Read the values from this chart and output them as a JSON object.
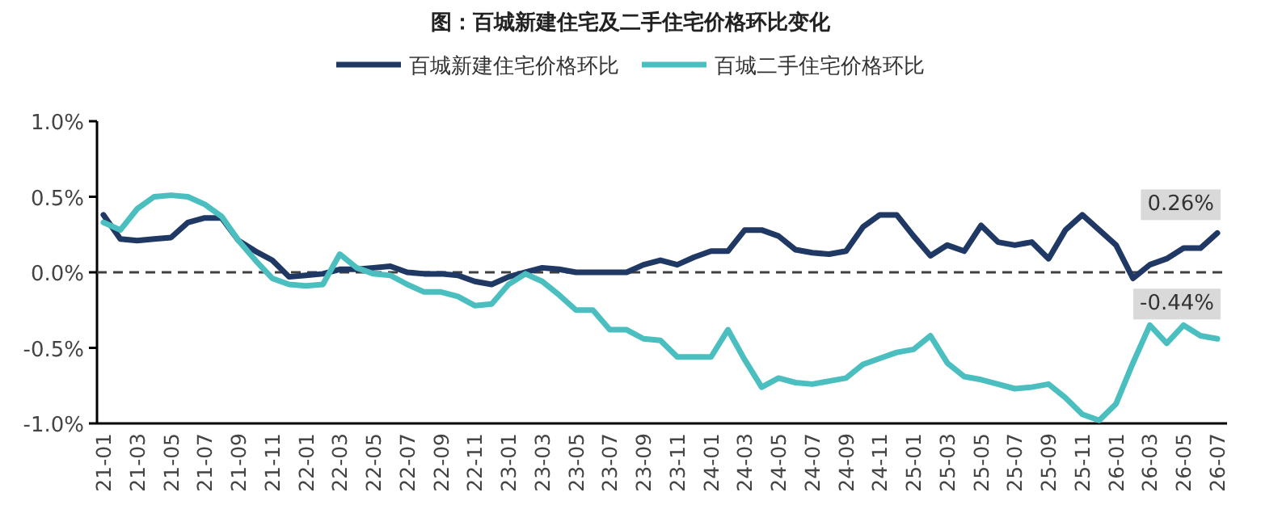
{
  "chart_data": {
    "type": "line",
    "title": "图：百城新建住宅及二手住宅价格环比变化",
    "categories": [
      "21-01",
      null,
      "21-03",
      null,
      "21-05",
      null,
      "21-07",
      null,
      "21-09",
      null,
      "21-11",
      null,
      "22-01",
      null,
      "22-03",
      null,
      "22-05",
      null,
      "22-07",
      null,
      "22-09",
      null,
      "22-11",
      null,
      "23-01",
      null,
      "23-03",
      null,
      "23-05",
      null,
      "23-07",
      null,
      "23-09",
      null,
      "23-11",
      null,
      "24-01",
      null,
      "24-03",
      null,
      "24-05",
      null,
      "24-07",
      null,
      "24-09",
      null,
      "24-11",
      null,
      "25-01",
      null,
      "25-03",
      null,
      "25-05",
      null,
      "25-07",
      null,
      "25-09",
      null,
      "25-11",
      null,
      "26-01",
      null,
      "26-03",
      null,
      "26-05",
      null,
      "26-07"
    ],
    "series": [
      {
        "name": "百城新建住宅价格环比",
        "color": "#1f3864",
        "values": [
          0.38,
          0.22,
          0.21,
          0.22,
          0.23,
          0.33,
          0.36,
          0.36,
          0.21,
          0.14,
          0.08,
          -0.03,
          -0.02,
          -0.01,
          0.02,
          0.02,
          0.03,
          0.04,
          0.0,
          -0.01,
          -0.01,
          -0.02,
          -0.06,
          -0.08,
          -0.03,
          0.0,
          0.03,
          0.02,
          0.0,
          0.0,
          0.0,
          0.0,
          0.05,
          0.08,
          0.05,
          0.1,
          0.14,
          0.14,
          0.28,
          0.28,
          0.24,
          0.15,
          0.13,
          0.12,
          0.14,
          0.3,
          0.38,
          0.38,
          0.24,
          0.11,
          0.18,
          0.14,
          0.31,
          0.2,
          0.18,
          0.2,
          0.09,
          0.28,
          0.38,
          0.28,
          0.18,
          -0.04,
          0.05,
          0.09,
          0.16,
          0.16,
          0.26
        ],
        "value_labels": [
          null,
          null,
          null,
          null,
          null,
          null,
          null,
          null,
          null,
          null,
          null,
          null,
          null,
          null,
          null,
          null,
          null,
          null,
          null,
          null,
          null,
          null,
          null,
          null,
          null,
          null,
          null,
          null,
          null,
          null,
          null,
          null,
          null,
          null,
          null,
          null,
          null,
          null,
          null,
          null,
          null,
          null,
          null,
          null,
          null,
          null,
          null,
          null,
          null,
          null,
          null,
          null,
          null,
          null,
          null,
          null,
          null,
          null,
          null,
          null,
          null,
          null,
          null,
          null,
          null,
          null,
          "0.26%"
        ]
      },
      {
        "name": "百城二手住宅价格环比",
        "color": "#4bbfc0",
        "values": [
          0.33,
          0.28,
          0.42,
          0.5,
          0.51,
          0.5,
          0.45,
          0.37,
          0.21,
          0.08,
          -0.04,
          -0.08,
          -0.09,
          -0.08,
          0.12,
          0.03,
          -0.01,
          -0.02,
          -0.08,
          -0.13,
          -0.13,
          -0.16,
          -0.22,
          -0.21,
          -0.08,
          -0.01,
          -0.06,
          -0.15,
          -0.25,
          -0.25,
          -0.38,
          -0.38,
          -0.44,
          -0.45,
          -0.56,
          -0.56,
          -0.56,
          -0.38,
          -0.58,
          -0.76,
          -0.7,
          -0.73,
          -0.74,
          -0.72,
          -0.7,
          -0.61,
          -0.57,
          -0.53,
          -0.51,
          -0.42,
          -0.6,
          -0.69,
          -0.71,
          -0.74,
          -0.77,
          -0.76,
          -0.74,
          -0.83,
          -0.94,
          -0.98,
          -0.87,
          -0.6,
          -0.35,
          -0.47,
          -0.35,
          -0.42,
          -0.44
        ],
        "value_labels": [
          null,
          null,
          null,
          null,
          null,
          null,
          null,
          null,
          null,
          null,
          null,
          null,
          null,
          null,
          null,
          null,
          null,
          null,
          null,
          null,
          null,
          null,
          null,
          null,
          null,
          null,
          null,
          null,
          null,
          null,
          null,
          null,
          null,
          null,
          null,
          null,
          null,
          null,
          null,
          null,
          null,
          null,
          null,
          null,
          null,
          null,
          null,
          null,
          null,
          null,
          null,
          null,
          null,
          null,
          null,
          null,
          null,
          null,
          null,
          null,
          null,
          null,
          null,
          null,
          null,
          null,
          "-0.44%"
        ]
      }
    ],
    "ylim": [
      -1,
      1
    ],
    "yticks": [
      {
        "value": -1,
        "label": "-1.0%"
      },
      {
        "value": -0.5,
        "label": "-0.5%"
      },
      {
        "value": 0,
        "label": "0.0%"
      },
      {
        "value": 0.5,
        "label": "0.5%"
      },
      {
        "value": 1,
        "label": "1.0%"
      }
    ],
    "ref_lines": [
      {
        "axis": "y",
        "value": 0,
        "label": null,
        "color": "#404040",
        "line_style": "dashed"
      }
    ],
    "legend": "top",
    "grid": false,
    "marker": "none",
    "line_style": "solid"
  }
}
